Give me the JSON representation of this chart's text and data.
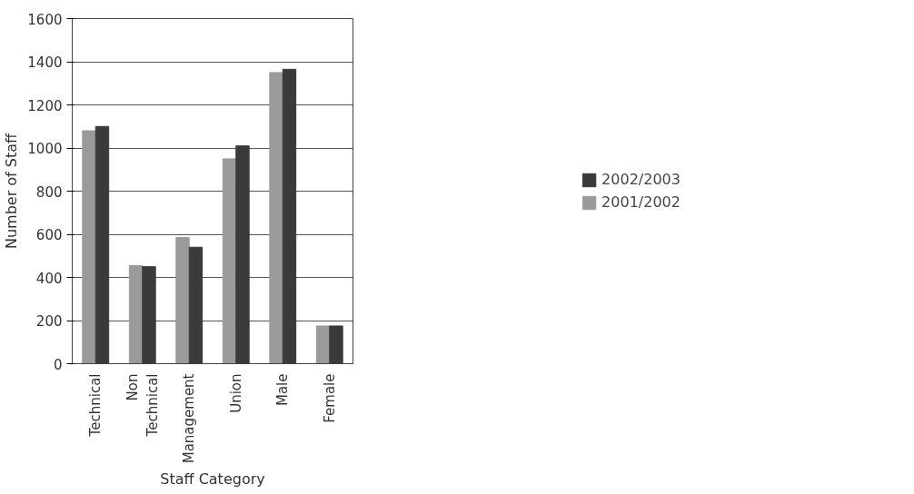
{
  "chart_data": {
    "type": "bar",
    "xlabel": "Staff Category",
    "ylabel": "Number of Staff",
    "categories": [
      "Technical",
      "Non Technical",
      "Management",
      "Union",
      "Male",
      "Female"
    ],
    "series": [
      {
        "name": "2001/2002",
        "color": "#9a9a9a",
        "values": [
          1080,
          455,
          585,
          950,
          1350,
          175
        ]
      },
      {
        "name": "2002/2003",
        "color": "#3a3a3a",
        "values": [
          1100,
          450,
          540,
          1010,
          1365,
          175
        ]
      }
    ],
    "ylim": [
      0,
      1600
    ],
    "yticks": [
      0,
      200,
      400,
      600,
      800,
      1000,
      1200,
      1400,
      1600
    ],
    "grid": "y",
    "legend": "right"
  }
}
